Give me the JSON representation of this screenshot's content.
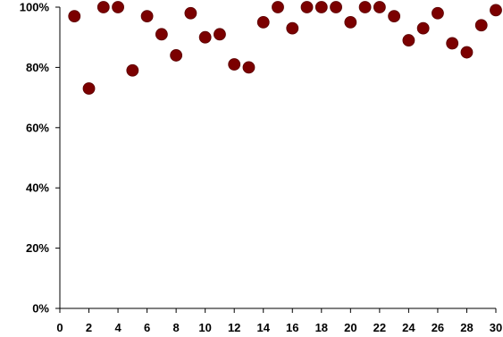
{
  "chart_data": {
    "type": "scatter",
    "title": "",
    "xlabel": "",
    "ylabel": "",
    "xlim": [
      0,
      30
    ],
    "ylim": [
      0,
      1
    ],
    "x_ticks": [
      0,
      2,
      4,
      6,
      8,
      10,
      12,
      14,
      16,
      18,
      20,
      22,
      24,
      26,
      28,
      30
    ],
    "y_ticks": [
      0,
      0.2,
      0.4,
      0.6,
      0.8,
      1.0
    ],
    "x_tick_labels": [
      "0",
      "2",
      "4",
      "6",
      "8",
      "10",
      "12",
      "14",
      "16",
      "18",
      "20",
      "22",
      "24",
      "26",
      "28",
      "30"
    ],
    "y_tick_labels": [
      "0%",
      "20%",
      "40%",
      "60%",
      "80%",
      "100%"
    ],
    "grid": false,
    "legend": "none",
    "marker_color": "#7b0000",
    "series": [
      {
        "x": [
          1,
          2,
          3,
          4,
          5,
          6,
          7,
          8,
          9,
          10,
          11,
          12,
          13,
          14,
          15,
          16,
          17,
          18,
          19,
          20,
          21,
          22,
          23,
          24,
          25,
          26,
          27,
          28,
          29,
          30
        ],
        "y": [
          0.97,
          0.73,
          1.0,
          1.0,
          0.79,
          0.97,
          0.91,
          0.84,
          0.98,
          0.9,
          0.91,
          0.81,
          0.8,
          0.95,
          1.0,
          0.93,
          1.0,
          1.0,
          1.0,
          0.95,
          1.0,
          1.0,
          0.97,
          0.89,
          0.93,
          0.98,
          0.88,
          0.85,
          0.94,
          0.99
        ]
      }
    ]
  }
}
